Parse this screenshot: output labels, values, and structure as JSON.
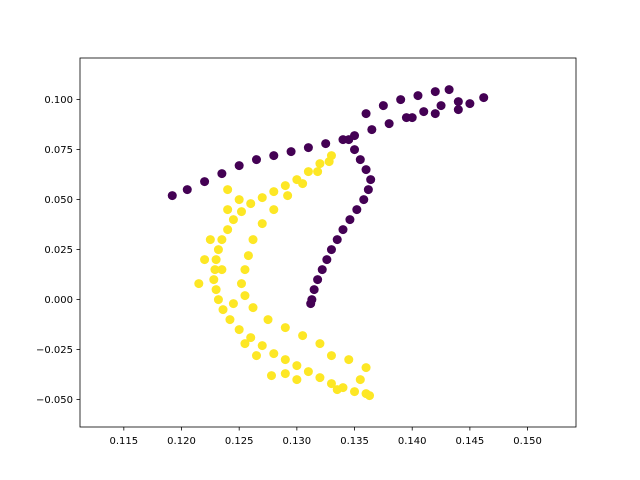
{
  "chart_data": {
    "type": "scatter",
    "title": "",
    "xlabel": "",
    "ylabel": "",
    "xlim": [
      0.1112,
      0.1542
    ],
    "ylim": [
      -0.0637,
      0.1208
    ],
    "x_ticks": [
      0.115,
      0.12,
      0.125,
      0.13,
      0.135,
      0.14,
      0.145,
      0.15
    ],
    "x_tick_labels": [
      "0.115",
      "0.120",
      "0.125",
      "0.130",
      "0.135",
      "0.140",
      "0.145",
      "0.150"
    ],
    "y_ticks": [
      -0.05,
      -0.025,
      0.0,
      0.025,
      0.05,
      0.075,
      0.1
    ],
    "y_tick_labels": [
      "−0.050",
      "−0.025",
      "0.000",
      "0.025",
      "0.050",
      "0.075",
      "0.100"
    ],
    "grid": false,
    "legend": "none",
    "series": [
      {
        "color": "#440154",
        "points": [
          [
            0.1192,
            0.052
          ],
          [
            0.1205,
            0.055
          ],
          [
            0.122,
            0.059
          ],
          [
            0.1235,
            0.063
          ],
          [
            0.125,
            0.067
          ],
          [
            0.1265,
            0.07
          ],
          [
            0.128,
            0.072
          ],
          [
            0.1295,
            0.074
          ],
          [
            0.131,
            0.076
          ],
          [
            0.1325,
            0.078
          ],
          [
            0.134,
            0.08
          ],
          [
            0.135,
            0.082
          ],
          [
            0.1365,
            0.085
          ],
          [
            0.138,
            0.088
          ],
          [
            0.1395,
            0.091
          ],
          [
            0.141,
            0.094
          ],
          [
            0.1425,
            0.097
          ],
          [
            0.144,
            0.099
          ],
          [
            0.1462,
            0.101
          ],
          [
            0.136,
            0.093
          ],
          [
            0.1375,
            0.097
          ],
          [
            0.139,
            0.1
          ],
          [
            0.1405,
            0.102
          ],
          [
            0.142,
            0.104
          ],
          [
            0.1432,
            0.105
          ],
          [
            0.145,
            0.098
          ],
          [
            0.144,
            0.095
          ],
          [
            0.142,
            0.093
          ],
          [
            0.14,
            0.091
          ],
          [
            0.1345,
            0.08
          ],
          [
            0.135,
            0.075
          ],
          [
            0.1355,
            0.07
          ],
          [
            0.136,
            0.065
          ],
          [
            0.1364,
            0.06
          ],
          [
            0.1362,
            0.055
          ],
          [
            0.1358,
            0.05
          ],
          [
            0.1352,
            0.045
          ],
          [
            0.1346,
            0.04
          ],
          [
            0.134,
            0.035
          ],
          [
            0.1335,
            0.03
          ],
          [
            0.133,
            0.025
          ],
          [
            0.1326,
            0.02
          ],
          [
            0.1322,
            0.015
          ],
          [
            0.1318,
            0.01
          ],
          [
            0.1315,
            0.005
          ],
          [
            0.1313,
            0.0
          ],
          [
            0.1312,
            -0.002
          ]
        ]
      },
      {
        "color": "#fde725",
        "points": [
          [
            0.133,
            0.072
          ],
          [
            0.132,
            0.068
          ],
          [
            0.131,
            0.064
          ],
          [
            0.13,
            0.06
          ],
          [
            0.129,
            0.057
          ],
          [
            0.128,
            0.054
          ],
          [
            0.127,
            0.051
          ],
          [
            0.126,
            0.048
          ],
          [
            0.1252,
            0.044
          ],
          [
            0.1245,
            0.04
          ],
          [
            0.124,
            0.035
          ],
          [
            0.1235,
            0.03
          ],
          [
            0.1232,
            0.025
          ],
          [
            0.123,
            0.02
          ],
          [
            0.1229,
            0.015
          ],
          [
            0.1228,
            0.01
          ],
          [
            0.123,
            0.005
          ],
          [
            0.1232,
            0.0
          ],
          [
            0.1236,
            -0.005
          ],
          [
            0.1242,
            -0.01
          ],
          [
            0.125,
            -0.015
          ],
          [
            0.126,
            -0.019
          ],
          [
            0.127,
            -0.023
          ],
          [
            0.128,
            -0.027
          ],
          [
            0.129,
            -0.03
          ],
          [
            0.13,
            -0.033
          ],
          [
            0.131,
            -0.036
          ],
          [
            0.132,
            -0.039
          ],
          [
            0.133,
            -0.042
          ],
          [
            0.134,
            -0.044
          ],
          [
            0.135,
            -0.046
          ],
          [
            0.136,
            -0.047
          ],
          [
            0.1363,
            -0.048
          ],
          [
            0.1215,
            0.008
          ],
          [
            0.122,
            0.02
          ],
          [
            0.1225,
            0.03
          ],
          [
            0.124,
            0.045
          ],
          [
            0.125,
            0.05
          ],
          [
            0.1255,
            -0.022
          ],
          [
            0.1265,
            -0.028
          ],
          [
            0.1278,
            -0.038
          ],
          [
            0.129,
            -0.037
          ],
          [
            0.13,
            -0.04
          ],
          [
            0.1335,
            -0.045
          ],
          [
            0.1355,
            -0.04
          ],
          [
            0.136,
            -0.034
          ],
          [
            0.1345,
            -0.03
          ],
          [
            0.133,
            -0.028
          ],
          [
            0.132,
            -0.022
          ],
          [
            0.1305,
            -0.018
          ],
          [
            0.129,
            -0.014
          ],
          [
            0.1275,
            -0.01
          ],
          [
            0.1262,
            -0.004
          ],
          [
            0.1255,
            0.002
          ],
          [
            0.1252,
            0.008
          ],
          [
            0.1255,
            0.015
          ],
          [
            0.1258,
            0.022
          ],
          [
            0.1262,
            0.03
          ],
          [
            0.127,
            0.038
          ],
          [
            0.128,
            0.045
          ],
          [
            0.1292,
            0.052
          ],
          [
            0.1305,
            0.058
          ],
          [
            0.1318,
            0.064
          ],
          [
            0.1328,
            0.069
          ],
          [
            0.1235,
            0.015
          ],
          [
            0.1245,
            -0.002
          ],
          [
            0.124,
            0.055
          ]
        ]
      }
    ]
  }
}
